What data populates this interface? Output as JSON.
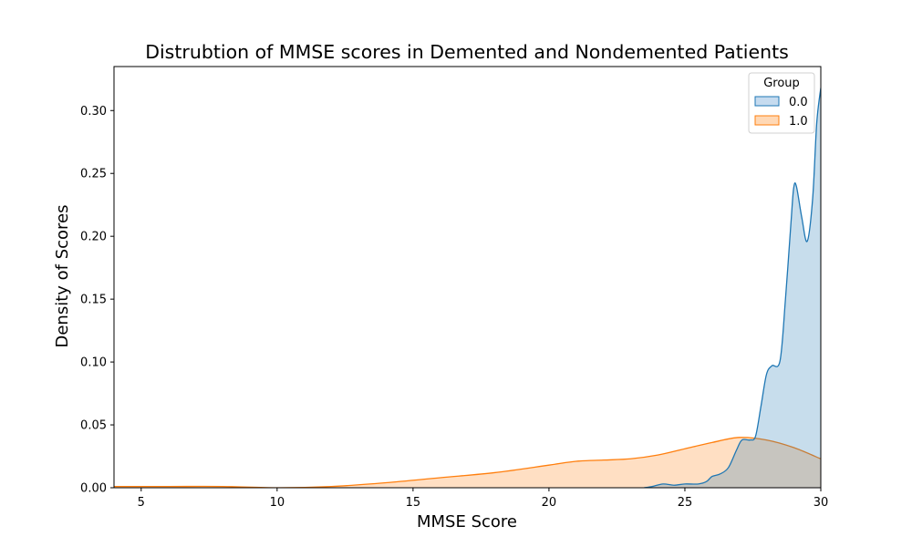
{
  "chart_data": {
    "type": "area",
    "title": "Distrubtion of MMSE scores in Demented and Nondemented Patients",
    "xlabel": "MMSE Score",
    "ylabel": "Density of Scores",
    "xlim": [
      4,
      30
    ],
    "ylim": [
      0,
      0.335
    ],
    "xticks": [
      "5",
      "10",
      "15",
      "20",
      "25",
      "30"
    ],
    "yticks": [
      "0.00",
      "0.05",
      "0.10",
      "0.15",
      "0.20",
      "0.25",
      "0.30"
    ],
    "grid": false,
    "legend": {
      "title": "Group",
      "position": "top-right"
    },
    "series": [
      {
        "name": "0.0",
        "color": "#1f77b4",
        "fill": "#c6dbef",
        "points": [
          [
            23.5,
            0
          ],
          [
            23.8,
            0.001
          ],
          [
            24.2,
            0.003
          ],
          [
            24.6,
            0.002
          ],
          [
            25.0,
            0.003
          ],
          [
            25.5,
            0.003
          ],
          [
            25.8,
            0.005
          ],
          [
            26.0,
            0.009
          ],
          [
            26.3,
            0.011
          ],
          [
            26.6,
            0.016
          ],
          [
            26.9,
            0.03
          ],
          [
            27.1,
            0.038
          ],
          [
            27.4,
            0.038
          ],
          [
            27.6,
            0.041
          ],
          [
            27.8,
            0.065
          ],
          [
            28.0,
            0.09
          ],
          [
            28.2,
            0.097
          ],
          [
            28.5,
            0.101
          ],
          [
            28.7,
            0.15
          ],
          [
            28.9,
            0.21
          ],
          [
            29.0,
            0.238
          ],
          [
            29.1,
            0.24
          ],
          [
            29.3,
            0.215
          ],
          [
            29.5,
            0.196
          ],
          [
            29.7,
            0.23
          ],
          [
            29.85,
            0.29
          ],
          [
            30.0,
            0.318
          ]
        ]
      },
      {
        "name": "1.0",
        "color": "#ff7f0e",
        "fill": "#ffd8b5",
        "points": [
          [
            4,
            0.001
          ],
          [
            6,
            0.001
          ],
          [
            8,
            0.001
          ],
          [
            10,
            0.0
          ],
          [
            12,
            0.001
          ],
          [
            14,
            0.004
          ],
          [
            16,
            0.008
          ],
          [
            18,
            0.012
          ],
          [
            20,
            0.018
          ],
          [
            21,
            0.021
          ],
          [
            22,
            0.022
          ],
          [
            23,
            0.023
          ],
          [
            24,
            0.026
          ],
          [
            25,
            0.031
          ],
          [
            26,
            0.036
          ],
          [
            27,
            0.04
          ],
          [
            28,
            0.038
          ],
          [
            29,
            0.032
          ],
          [
            30,
            0.023
          ]
        ]
      }
    ]
  }
}
